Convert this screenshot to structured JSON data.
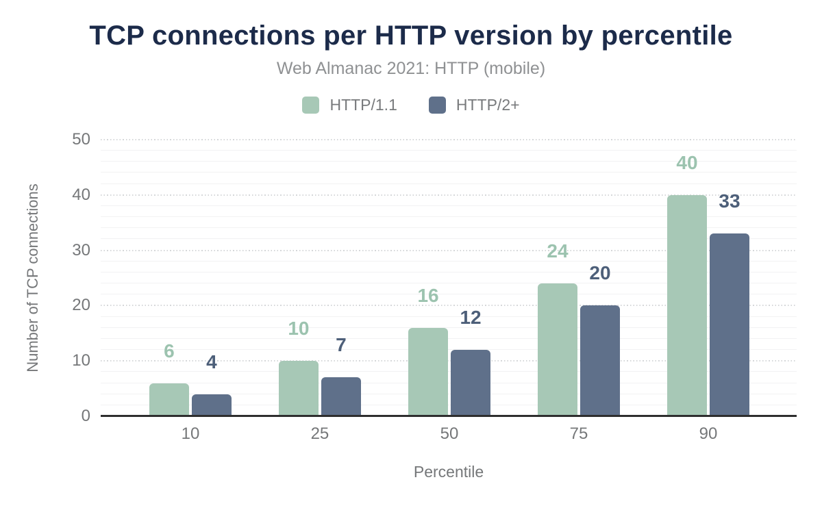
{
  "chart_data": {
    "type": "bar",
    "title": "TCP connections per HTTP version by percentile",
    "subtitle": "Web Almanac 2021: HTTP (mobile)",
    "xlabel": "Percentile",
    "ylabel": "Number of TCP connections",
    "categories": [
      "10",
      "25",
      "50",
      "75",
      "90"
    ],
    "series": [
      {
        "name": "HTTP/1.1",
        "values": [
          6,
          10,
          16,
          24,
          40
        ],
        "bar_color": "#a7c8b6",
        "label_color": "#9cc3af"
      },
      {
        "name": "HTTP/2+",
        "values": [
          4,
          7,
          12,
          20,
          33
        ],
        "bar_color": "#5f708a",
        "label_color": "#4d5f79"
      }
    ],
    "ylim": [
      0,
      50
    ],
    "ytick_step": 10,
    "minor_grid_step": 2,
    "yticks": [
      0,
      10,
      20,
      30,
      40,
      50
    ],
    "grid": "on",
    "legend_position": "top"
  },
  "colors": {
    "title": "#1c2b4a",
    "subtitle": "#8f9193",
    "axis_text": "#757779",
    "baseline": "#2e2e2e",
    "grid_major": "#d5d7d9",
    "grid_minor": "#f2f2f3",
    "background": "#ffffff"
  }
}
